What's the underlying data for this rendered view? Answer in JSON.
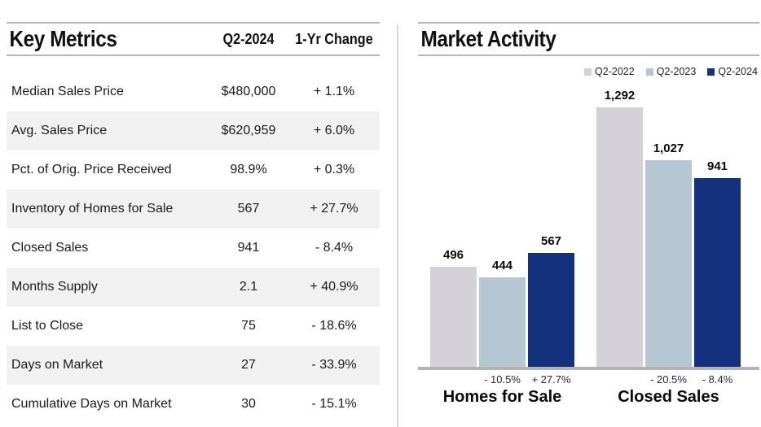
{
  "key_metrics": {
    "title": "Key Metrics",
    "columns": [
      "Q2-2024",
      "1-Yr Change"
    ],
    "rows": [
      {
        "label": "Median Sales Price",
        "value": "$480,000",
        "change": "+ 1.1%"
      },
      {
        "label": "Avg. Sales Price",
        "value": "$620,959",
        "change": "+ 6.0%"
      },
      {
        "label": "Pct. of Orig. Price Received",
        "value": "98.9%",
        "change": "+ 0.3%"
      },
      {
        "label": "Inventory of Homes for Sale",
        "value": "567",
        "change": "+ 27.7%"
      },
      {
        "label": "Closed Sales",
        "value": "941",
        "change": "- 8.4%"
      },
      {
        "label": "Months Supply",
        "value": "2.1",
        "change": "+ 40.9%"
      },
      {
        "label": "List to Close",
        "value": "75",
        "change": "- 18.6%"
      },
      {
        "label": "Days on Market",
        "value": "27",
        "change": "- 33.9%"
      },
      {
        "label": "Cumulative Days on Market",
        "value": "30",
        "change": "- 15.1%"
      }
    ]
  },
  "chart_data": {
    "type": "bar",
    "title": "Market Activity",
    "legend": [
      {
        "label": "Q2-2022",
        "color": "#d5d1d8"
      },
      {
        "label": "Q2-2023",
        "color": "#b6c7d4"
      },
      {
        "label": "Q2-2024",
        "color": "#14317d"
      }
    ],
    "legend_position": "top-right",
    "grid": false,
    "ylim": [
      0,
      1400
    ],
    "categories": [
      "Homes for Sale",
      "Closed Sales"
    ],
    "series": [
      {
        "name": "Q2-2022",
        "values": [
          496,
          1292
        ]
      },
      {
        "name": "Q2-2023",
        "values": [
          444,
          1027
        ]
      },
      {
        "name": "Q2-2024",
        "values": [
          567,
          941
        ]
      }
    ],
    "value_labels": [
      [
        "496",
        "444",
        "567"
      ],
      [
        "1,292",
        "1,027",
        "941"
      ]
    ],
    "pct_changes": [
      [
        null,
        "- 10.5%",
        "+ 27.7%"
      ],
      [
        null,
        "- 20.5%",
        "- 8.4%"
      ]
    ]
  },
  "colors": {
    "zebra_row": "#f1f1f1",
    "header_line": "#b5b5b5",
    "axis_line": "#b3b3b3",
    "divider": "#d9d9d9"
  }
}
